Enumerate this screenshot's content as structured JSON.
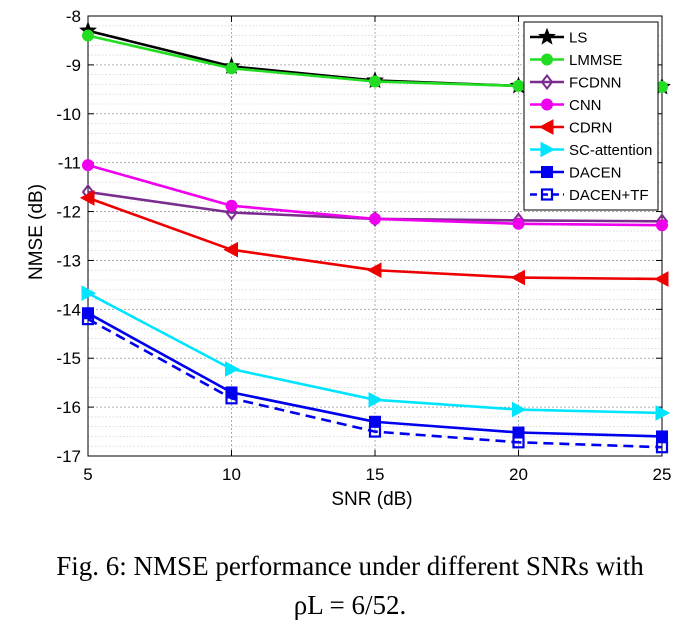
{
  "chart_data": {
    "type": "line",
    "xlabel": "SNR (dB)",
    "ylabel": "NMSE (dB)",
    "x": [
      5,
      10,
      15,
      20,
      25
    ],
    "xlim": [
      5,
      25
    ],
    "ylim": [
      -17,
      -8
    ],
    "xticks": [
      5,
      10,
      15,
      20,
      25
    ],
    "yticks": [
      -8,
      -9,
      -10,
      -11,
      -12,
      -13,
      -14,
      -15,
      -16,
      -17
    ],
    "grid": true,
    "minor_grid": true,
    "legend_position": "top-right",
    "series": [
      {
        "name": "LS",
        "color": "#000000",
        "marker": "star",
        "dash": false,
        "values": [
          -8.3,
          -9.03,
          -9.32,
          -9.43,
          -9.45
        ]
      },
      {
        "name": "LMMSE",
        "color": "#22dd22",
        "marker": "circle",
        "dash": false,
        "values": [
          -8.4,
          -9.07,
          -9.34,
          -9.43,
          -9.45
        ]
      },
      {
        "name": "FCDNN",
        "color": "#7a2d8f",
        "marker": "diamond",
        "dash": false,
        "values": [
          -11.6,
          -12.02,
          -12.15,
          -12.18,
          -12.2
        ]
      },
      {
        "name": "CNN",
        "color": "#ee00ee",
        "marker": "circle",
        "dash": false,
        "values": [
          -11.05,
          -11.88,
          -12.15,
          -12.25,
          -12.28
        ]
      },
      {
        "name": "CDRN",
        "color": "#ee0000",
        "marker": "triangle-left",
        "dash": false,
        "values": [
          -11.72,
          -12.78,
          -13.2,
          -13.35,
          -13.38
        ]
      },
      {
        "name": "SC-attention",
        "color": "#00e5ff",
        "marker": "triangle-right",
        "dash": false,
        "values": [
          -13.67,
          -15.22,
          -15.85,
          -16.05,
          -16.12
        ]
      },
      {
        "name": "DACEN",
        "color": "#0000ee",
        "marker": "square-filled",
        "dash": false,
        "values": [
          -14.08,
          -15.7,
          -16.3,
          -16.52,
          -16.6
        ]
      },
      {
        "name": "DACEN+TF",
        "color": "#0000ee",
        "marker": "square-open",
        "dash": true,
        "values": [
          -14.2,
          -15.82,
          -16.5,
          -16.72,
          -16.82
        ]
      }
    ]
  },
  "caption": {
    "line1": "Fig. 6: NMSE performance under different SNRs with",
    "line2": "ρL = 6/52."
  }
}
